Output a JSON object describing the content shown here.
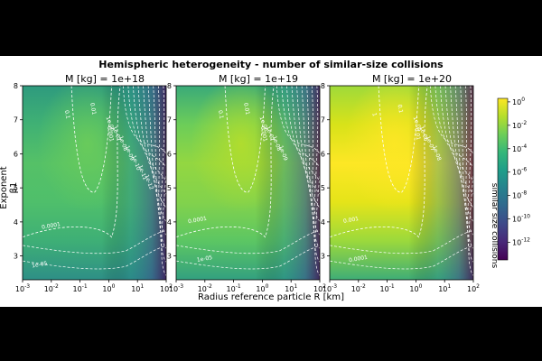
{
  "chart_data": {
    "type": "heatmap",
    "title": "Hemispheric heterogeneity - number of similar-size collisions",
    "xlabel": "Radius reference particle R [km]",
    "ylabel": "Exponent β1",
    "colorbar_label": "similar size collisions",
    "colormap": "viridis",
    "x_scale": "log",
    "xlim": [
      0.001,
      100
    ],
    "ylim": [
      2.3,
      8
    ],
    "x_ticks": [
      "10^-3",
      "10^-2",
      "10^-1",
      "10^0",
      "10^1",
      "10^2"
    ],
    "y_ticks": [
      "3",
      "4",
      "5",
      "6",
      "7",
      "8"
    ],
    "colorbar_ticks": [
      "10^0",
      "10^-2",
      "10^-4",
      "10^-6",
      "10^-8",
      "10^-10",
      "10^-12"
    ],
    "panels": [
      {
        "title": "M [kg] = 1e+18",
        "contour_labels": [
          "0.1",
          "0.01",
          "0.001",
          "0.0001",
          "1e-05",
          "1e-06",
          "1e-07",
          "1e-08",
          "1e-09",
          "1e-10",
          "1e-11",
          "1e-12"
        ]
      },
      {
        "title": "M [kg] = 1e+19",
        "contour_labels": [
          "0.1",
          "0.01",
          "0.001",
          "0.0001",
          "1e-05",
          "1e-06",
          "1e-07",
          "1e-08",
          "1e-09"
        ]
      },
      {
        "title": "M [kg] = 1e+20",
        "contour_labels": [
          "1",
          "0.1",
          "0.01",
          "0.001",
          "0.0001",
          "1e-05",
          "1e-06",
          "1e-07",
          "1e-08"
        ]
      }
    ]
  }
}
